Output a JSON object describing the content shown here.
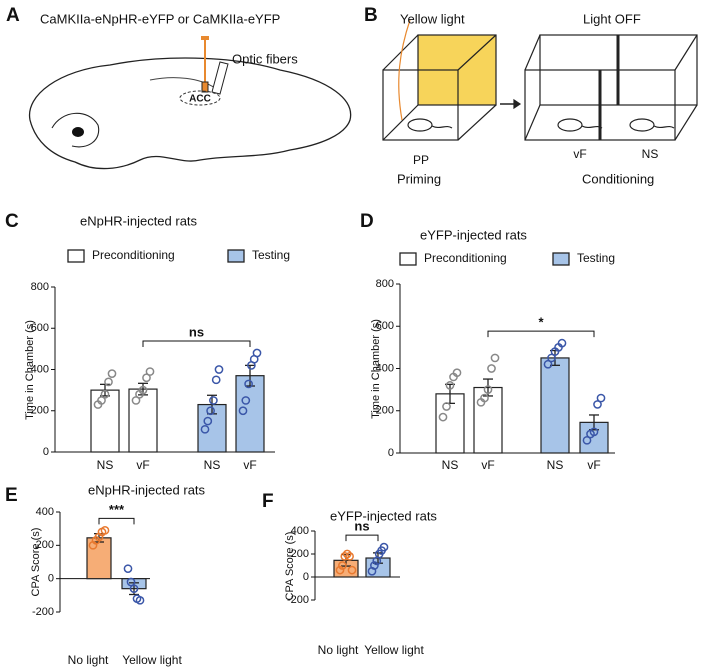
{
  "panel_labels": [
    "A",
    "B",
    "C",
    "D",
    "E",
    "F"
  ],
  "diagram_a": {
    "construct": "CaMKIIa-eNpHR-eYFP or CaMKIIa-eYFP",
    "fiber_label": "Optic fibers",
    "region": "ACC"
  },
  "diagram_b": {
    "left_header": "Yellow light",
    "right_header": "Light OFF",
    "left_rat": "PP",
    "middle_rat": "vF",
    "right_rat": "NS",
    "left_caption": "Priming",
    "right_caption": "Conditioning"
  },
  "chart_data": [
    {
      "type": "bar",
      "title": "eNpHR-injected rats",
      "ylabel": "Time in Chamber (s)",
      "categories": [
        "NS",
        "vF",
        "NS",
        "vF"
      ],
      "series": [
        {
          "name": "Preconditioning",
          "color": "#ffffff",
          "point_color": "#888888",
          "values": [
            300,
            305,
            null,
            null
          ],
          "errors": [
            28,
            28,
            null,
            null
          ],
          "points": [
            [
              230,
              250,
              280,
              340,
              380
            ],
            [
              250,
              280,
              300,
              360,
              390
            ],
            null,
            null
          ]
        },
        {
          "name": "Testing",
          "color": "#a7c4e8",
          "point_color": "#3a56a8",
          "values": [
            null,
            null,
            230,
            370
          ],
          "errors": [
            null,
            null,
            45,
            50
          ],
          "points": [
            null,
            null,
            [
              110,
              150,
              200,
              250,
              350,
              400
            ],
            [
              200,
              250,
              330,
              420,
              450,
              480
            ]
          ]
        }
      ],
      "ylim": [
        0,
        800
      ],
      "yticks": [
        0,
        200,
        400,
        600,
        800
      ],
      "significance": "ns"
    },
    {
      "type": "bar",
      "title": "eYFP-injected rats",
      "ylabel": "Time in Chamber (s)",
      "categories": [
        "NS",
        "vF",
        "NS",
        "vF"
      ],
      "series": [
        {
          "name": "Preconditioning",
          "color": "#ffffff",
          "point_color": "#888888",
          "values": [
            280,
            310,
            null,
            null
          ],
          "errors": [
            45,
            40,
            null,
            null
          ],
          "points": [
            [
              170,
              220,
              320,
              360,
              380
            ],
            [
              240,
              260,
              300,
              400,
              450
            ],
            null,
            null
          ]
        },
        {
          "name": "Testing",
          "color": "#a7c4e8",
          "point_color": "#3a56a8",
          "values": [
            null,
            null,
            450,
            145
          ],
          "errors": [
            null,
            null,
            35,
            35
          ],
          "points": [
            null,
            null,
            [
              420,
              450,
              480,
              500,
              520
            ],
            [
              60,
              90,
              100,
              230,
              260
            ]
          ]
        }
      ],
      "ylim": [
        0,
        800
      ],
      "yticks": [
        0,
        200,
        400,
        600,
        800
      ],
      "significance": "*"
    },
    {
      "type": "bar",
      "title": "eNpHR-injected rats",
      "ylabel": "CPA Score (s)",
      "categories": [
        "No light",
        "Yellow light"
      ],
      "values": [
        245,
        -60
      ],
      "errors": [
        25,
        35
      ],
      "colors": [
        "#f6ad76",
        "#a7c4e8"
      ],
      "point_colors": [
        "#e8792f",
        "#3a56a8"
      ],
      "points": [
        [
          200,
          230,
          250,
          280,
          290
        ],
        [
          60,
          -20,
          -60,
          -120,
          -130
        ]
      ],
      "ylim": [
        -200,
        400
      ],
      "yticks": [
        -200,
        0,
        200,
        400
      ],
      "significance": "***"
    },
    {
      "type": "bar",
      "title": "eYFP-injected rats",
      "ylabel": "CPA Score (s)",
      "categories": [
        "No light",
        "Yellow light"
      ],
      "values": [
        145,
        165
      ],
      "errors": [
        50,
        45
      ],
      "colors": [
        "#f6ad76",
        "#a7c4e8"
      ],
      "point_colors": [
        "#e8792f",
        "#3a56a8"
      ],
      "points": [
        [
          60,
          100,
          180,
          200,
          180,
          60
        ],
        [
          50,
          100,
          140,
          200,
          230,
          260
        ]
      ],
      "ylim": [
        -200,
        400
      ],
      "yticks": [
        -200,
        0,
        200,
        400
      ],
      "significance": "ns"
    }
  ]
}
